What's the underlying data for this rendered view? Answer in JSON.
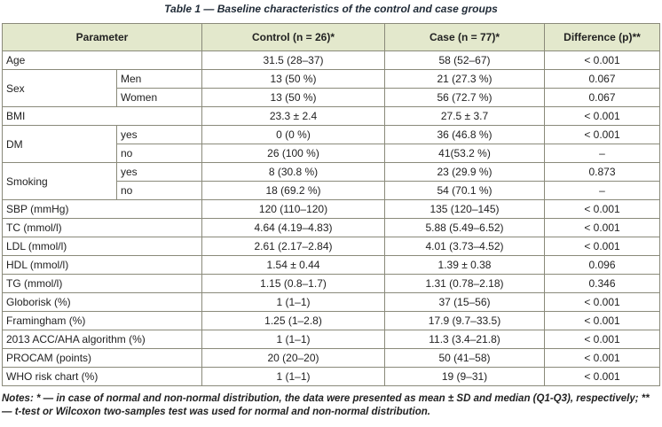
{
  "caption": "Table 1 — Baseline characteristics of the control and case groups",
  "headers": {
    "parameter": "Parameter",
    "control": "Control (n = 26)*",
    "case": "Case (n = 77)*",
    "difference": "Difference (p)**"
  },
  "rows": {
    "age": {
      "label": "Age",
      "control": "31.5 (28–37)",
      "case": "58 (52–67)",
      "diff": "< 0.001"
    },
    "sex": {
      "label": "Sex",
      "men": {
        "label": "Men",
        "control": "13 (50 %)",
        "case": "21 (27.3 %)",
        "diff": "0.067"
      },
      "women": {
        "label": "Women",
        "control": "13 (50 %)",
        "case": "56 (72.7 %)",
        "diff": "0.067"
      }
    },
    "bmi": {
      "label": "BMI",
      "control": "23.3 ± 2.4",
      "case": "27.5 ± 3.7",
      "diff": "< 0.001"
    },
    "dm": {
      "label": "DM",
      "yes": {
        "label": "yes",
        "control": "0 (0 %)",
        "case": "36 (46.8 %)",
        "diff": "< 0.001"
      },
      "no": {
        "label": "no",
        "control": "26 (100 %)",
        "case": "41(53.2 %)",
        "diff": "–"
      }
    },
    "smoking": {
      "label": "Smoking",
      "yes": {
        "label": "yes",
        "control": "8 (30.8 %)",
        "case": "23 (29.9 %)",
        "diff": "0.873"
      },
      "no": {
        "label": "no",
        "control": "18 (69.2 %)",
        "case": "54 (70.1 %)",
        "diff": "–"
      }
    },
    "sbp": {
      "label": "SBP (mmHg)",
      "control": "120 (110–120)",
      "case": "135 (120–145)",
      "diff": "< 0.001"
    },
    "tc": {
      "label": "TC (mmol/l)",
      "control": "4.64 (4.19–4.83)",
      "case": "5.88 (5.49–6.52)",
      "diff": "< 0.001"
    },
    "ldl": {
      "label": "LDL (mmol/l)",
      "control": "2.61 (2.17–2.84)",
      "case": "4.01 (3.73–4.52)",
      "diff": "< 0.001"
    },
    "hdl": {
      "label": "HDL (mmol/l)",
      "control": "1.54 ± 0.44",
      "case": "1.39 ± 0.38",
      "diff": "0.096"
    },
    "tg": {
      "label": "TG (mmol/l)",
      "control": "1.15 (0.8–1.7)",
      "case": "1.31 (0.78–2.18)",
      "diff": "0.346"
    },
    "globorisk": {
      "label": "Globorisk (%)",
      "control": "1 (1–1)",
      "case": "37 (15–56)",
      "diff": "< 0.001"
    },
    "framingham": {
      "label": "Framingham (%)",
      "control": "1.25 (1–2.8)",
      "case": "17.9 (9.7–33.5)",
      "diff": "< 0.001"
    },
    "acc_aha": {
      "label": "2013 ACC/AHA algorithm (%)",
      "control": "1 (1–1)",
      "case": "11.3 (3.4–21.8)",
      "diff": "< 0.001"
    },
    "procam": {
      "label": "PROCAM (points)",
      "control": "20 (20–20)",
      "case": "50 (41–58)",
      "diff": "< 0.001"
    },
    "who": {
      "label": "WHO risk chart (%)",
      "control": "1 (1–1)",
      "case": "19 (9–31)",
      "diff": "< 0.001"
    }
  },
  "notes": "Notes: * — in case of normal and non-normal distribution, the data were presented as mean ± SD and median (Q1-Q3), respectively; ** — t-test or Wilcoxon two-samples test was used for normal and non-normal distribution."
}
